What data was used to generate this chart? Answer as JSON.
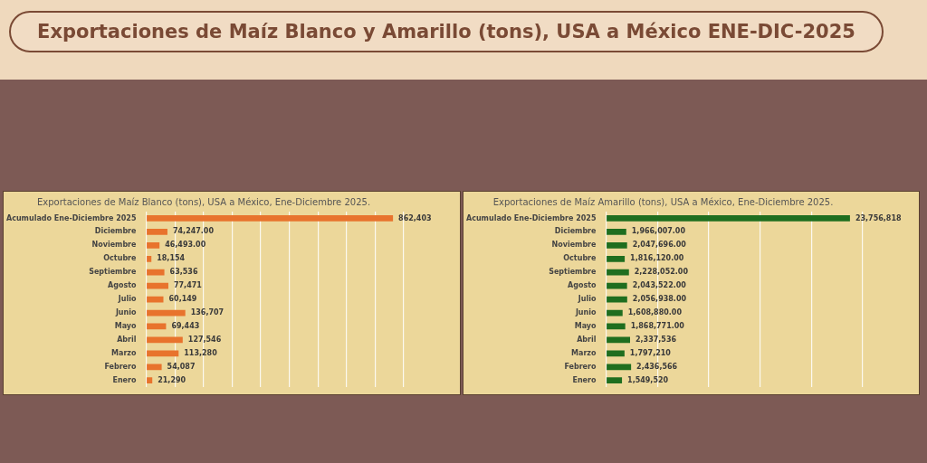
{
  "chart_data": [
    {
      "type": "other",
      "title": "Exportaciones de Maíz Blanco y Amarillo (tons), USA a México ENE-DIC-2025"
    },
    {
      "type": "bar",
      "orientation": "horizontal",
      "title": "Exportaciones de Maíz Blanco (tons), USA a México, Ene-Diciembre 2025.",
      "categories": [
        "Acumulado Ene-Diciembre 2025",
        "Diciembre",
        "Noviembre",
        "Octubre",
        "Septiembre",
        "Agosto",
        "Julio",
        "Junio",
        "Mayo",
        "Abril",
        "Marzo",
        "Febrero",
        "Enero"
      ],
      "values": [
        862403,
        74247,
        46493,
        18154,
        63536,
        77471,
        60149,
        136707,
        69443,
        127546,
        113280,
        54087,
        21290
      ],
      "value_labels": [
        "862,403",
        "74,247.00",
        "46,493.00",
        "18,154",
        "63,536",
        "77,471",
        "60,149",
        "136,707",
        "69,443",
        "127,546",
        "113,280",
        "54,087",
        "21,290"
      ],
      "color": "#e8732d",
      "xlim": [
        0,
        900000
      ],
      "xticks": [
        0,
        100000,
        200000,
        300000,
        400000,
        500000,
        600000,
        700000,
        800000,
        900000
      ],
      "grid": "x",
      "tick_labels": "y",
      "legend": false
    },
    {
      "type": "bar",
      "orientation": "horizontal",
      "title": "Exportaciones de Maíz Amarillo (tons), USA a México, Ene-Diciembre 2025.",
      "categories": [
        "Acumulado Ene-Diciembre 2025",
        "Diciembre",
        "Noviembre",
        "Octubre",
        "Septiembre",
        "Agosto",
        "Julio",
        "Junio",
        "Mayo",
        "Abril",
        "Marzo",
        "Febrero",
        "Enero"
      ],
      "values": [
        23756818,
        1966007,
        2047696,
        1816120,
        2228052,
        2043522,
        2056938,
        1608880,
        1868771,
        2337536,
        1797210,
        2436566,
        1549520
      ],
      "value_labels": [
        "23,756,818",
        "1,966,007.00",
        "2,047,696.00",
        "1,816,120.00",
        "2,228,052.00",
        "2,043,522.00",
        "2,056,938.00",
        "1,608,880.00",
        "1,868,771.00",
        "2,337,536",
        "1,797,210",
        "2,436,566",
        "1,549,520"
      ],
      "color": "#1f6e1f",
      "grid": "x",
      "tick_labels": "y",
      "legend": false
    }
  ]
}
